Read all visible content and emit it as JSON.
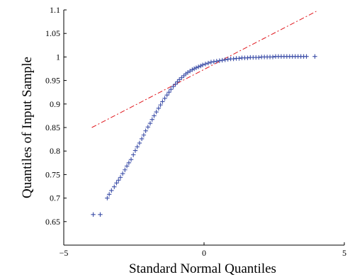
{
  "chart_data": {
    "type": "scatter",
    "title": "",
    "xlabel": "Standard Normal Quantiles",
    "ylabel": "Quantiles of Input Sample",
    "xlim": [
      -5,
      5
    ],
    "ylim": [
      0.6,
      1.1
    ],
    "xticks": [
      "−5",
      "0",
      "5"
    ],
    "yticks": [
      "0.65",
      "0.7",
      "0.75",
      "0.8",
      "0.85",
      "0.9",
      "0.95",
      "1",
      "1.05",
      "1.1"
    ],
    "marker": "+",
    "marker_color": "#3d4fa8",
    "grid": false,
    "reference_line": {
      "style": "dash-dot",
      "color": "#e0161c",
      "x": [
        -4.0,
        4.0
      ],
      "y": [
        0.85,
        1.097
      ]
    },
    "series": [
      {
        "x": [
          -3.95,
          -3.7,
          -3.45,
          -3.38,
          -3.3,
          -3.2,
          -3.12,
          -3.05,
          -2.98,
          -2.9,
          -2.82,
          -2.75,
          -2.68,
          -2.6,
          -2.52,
          -2.45,
          -2.38,
          -2.3,
          -2.22,
          -2.15,
          -2.08,
          -2.0,
          -1.92,
          -1.85,
          -1.78,
          -1.7,
          -1.62,
          -1.55,
          -1.48,
          -1.4,
          -1.32,
          -1.25,
          -1.18,
          -1.1,
          -1.02,
          -0.95,
          -0.88,
          -0.8,
          -0.72,
          -0.65,
          -0.58,
          -0.5,
          -0.42,
          -0.35,
          -0.28,
          -0.2,
          -0.12,
          -0.05,
          0.05,
          0.15,
          0.25,
          0.35,
          0.45,
          0.55,
          0.65,
          0.75,
          0.85,
          0.95,
          1.05,
          1.15,
          1.25,
          1.35,
          1.45,
          1.55,
          1.65,
          1.75,
          1.85,
          1.95,
          2.05,
          2.15,
          2.25,
          2.35,
          2.45,
          2.55,
          2.65,
          2.75,
          2.85,
          2.95,
          3.05,
          3.15,
          3.25,
          3.35,
          3.45,
          3.55,
          3.65,
          3.95
        ],
        "y": [
          0.665,
          0.665,
          0.7,
          0.708,
          0.716,
          0.724,
          0.732,
          0.738,
          0.744,
          0.752,
          0.76,
          0.768,
          0.775,
          0.782,
          0.792,
          0.801,
          0.809,
          0.817,
          0.826,
          0.834,
          0.843,
          0.851,
          0.859,
          0.867,
          0.875,
          0.883,
          0.891,
          0.898,
          0.905,
          0.912,
          0.919,
          0.925,
          0.931,
          0.937,
          0.942,
          0.947,
          0.952,
          0.956,
          0.96,
          0.964,
          0.967,
          0.97,
          0.973,
          0.975,
          0.977,
          0.979,
          0.981,
          0.983,
          0.985,
          0.987,
          0.989,
          0.99,
          0.991,
          0.992,
          0.993,
          0.994,
          0.995,
          0.996,
          0.996,
          0.997,
          0.997,
          0.998,
          0.998,
          0.998,
          0.999,
          0.999,
          0.999,
          0.999,
          1.0,
          1.0,
          1.0,
          1.0,
          1.0,
          1.001,
          1.001,
          1.001,
          1.001,
          1.001,
          1.001,
          1.001,
          1.001,
          1.001,
          1.001,
          1.001,
          1.001,
          1.001
        ]
      }
    ]
  }
}
